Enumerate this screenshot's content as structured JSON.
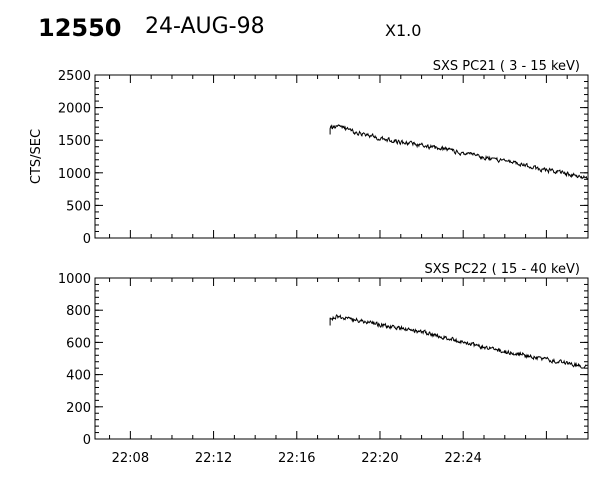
{
  "header": {
    "event_id": "12550",
    "date": "24-AUG-98",
    "scale": "X1.0"
  },
  "chart_data": [
    {
      "type": "line",
      "panel": "top",
      "title": "SXS PC21  (  3 - 15 keV)",
      "xlabel": "",
      "ylabel": "CTS/SEC",
      "x_unit": "minutes after 22:00 UT",
      "xlim": [
        6.3,
        30.0
      ],
      "ylim": [
        0,
        2500
      ],
      "yticks": [
        0,
        500,
        1000,
        1500,
        2000,
        2500
      ],
      "ytick_labels": [
        "0",
        "500",
        "1000",
        "1500",
        "2000",
        "2500"
      ],
      "grid": false,
      "series": [
        {
          "start_minute": 17.6,
          "end_minute": 30.0,
          "x": [
            17.6,
            18.0,
            19.0,
            20.0,
            21.0,
            22.0,
            23.0,
            24.0,
            25.0,
            26.0,
            27.0,
            28.0,
            29.0,
            30.0
          ],
          "y": [
            1700,
            1700,
            1610,
            1530,
            1470,
            1420,
            1370,
            1300,
            1240,
            1180,
            1110,
            1040,
            980,
            920
          ]
        }
      ]
    },
    {
      "type": "line",
      "panel": "bottom",
      "title": "SXS PC22  ( 15 - 40 keV)",
      "xlabel": "",
      "ylabel": "",
      "x_unit": "minutes after 22:00 UT",
      "xlim": [
        6.3,
        30.0
      ],
      "ylim": [
        0,
        1000
      ],
      "yticks": [
        0,
        200,
        400,
        600,
        800,
        1000
      ],
      "ytick_labels": [
        "0",
        "200",
        "400",
        "600",
        "800",
        "1000"
      ],
      "xticks": [
        8,
        12,
        16,
        20,
        24
      ],
      "xtick_labels": [
        "22:08",
        "22:12",
        "22:16",
        "22:20",
        "22:24"
      ],
      "grid": false,
      "series": [
        {
          "start_minute": 17.6,
          "end_minute": 30.0,
          "x": [
            17.6,
            18.0,
            19.0,
            20.0,
            21.0,
            22.0,
            23.0,
            24.0,
            25.0,
            26.0,
            27.0,
            28.0,
            29.0,
            30.0
          ],
          "y": [
            750,
            760,
            735,
            710,
            690,
            665,
            635,
            600,
            570,
            540,
            520,
            495,
            470,
            450
          ]
        }
      ]
    }
  ]
}
